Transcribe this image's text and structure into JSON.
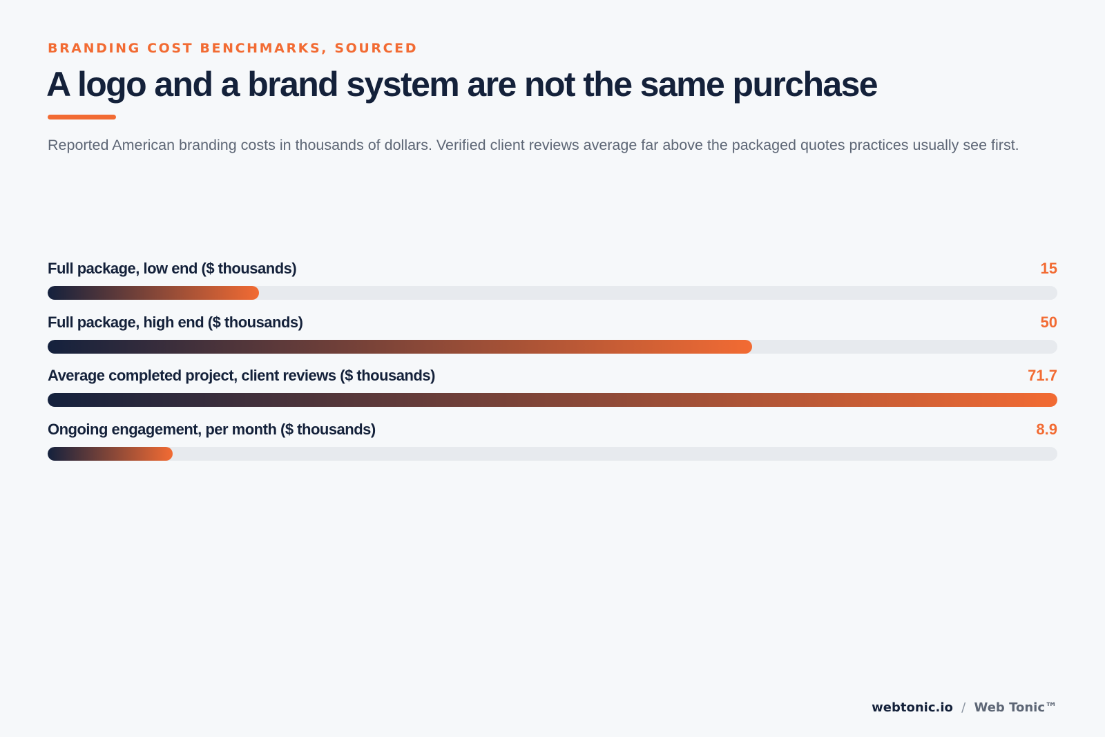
{
  "header": {
    "eyebrow": "BRANDING COST BENCHMARKS, SOURCED",
    "title": "A logo and a brand system are not the same purchase",
    "subtitle": "Reported American branding costs in thousands of dollars. Verified client reviews average far above the packaged quotes practices usually see first."
  },
  "colors": {
    "accent": "#f26b33",
    "navy": "#14213d",
    "track": "#e7eaee",
    "background": "#f6f8fa"
  },
  "chart_data": {
    "type": "bar",
    "orientation": "horizontal",
    "title": "A logo and a brand system are not the same purchase",
    "subtitle": "Reported American branding costs in thousands of dollars. Verified client reviews average far above the packaged quotes practices usually see first.",
    "categories": [
      "Full package, low end ($ thousands)",
      "Full package, high end ($ thousands)",
      "Average completed project, client reviews ($ thousands)",
      "Ongoing engagement, per month ($ thousands)"
    ],
    "values": [
      15,
      50,
      71.7,
      8.9
    ],
    "value_labels": [
      "15",
      "50",
      "71.7",
      "8.9"
    ],
    "xlim": [
      0,
      71.7
    ],
    "grid": false
  },
  "footer": {
    "site": "webtonic.io",
    "separator": "/",
    "brand": "Web Tonic™"
  }
}
